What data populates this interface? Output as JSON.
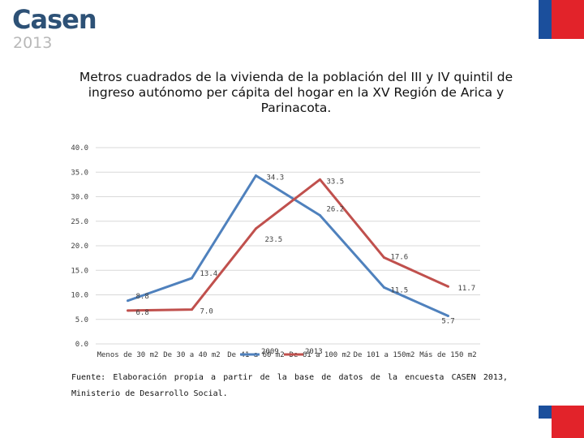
{
  "logo": {
    "name": "Casen",
    "year": "2013"
  },
  "chart_data": {
    "type": "line",
    "title": "Metros cuadrados de la vivienda de la población del III y IV quintil de ingreso autónomo per cápita del hogar en la XV Región de Arica y Parinacota.",
    "categories": [
      "Menos de 30 m2",
      "De 30 a 40 m2",
      "De 41 a 60 m2",
      "De 61 a 100 m2",
      "De 101 a 150m2",
      "Más de 150 m2"
    ],
    "yticks": [
      "0.0",
      "5.0",
      "10.0",
      "15.0",
      "20.0",
      "25.0",
      "30.0",
      "35.0",
      "40.0"
    ],
    "ylim": [
      0,
      40
    ],
    "xlabel": "",
    "ylabel": "",
    "grid": true,
    "legend_position": "bottom",
    "series": [
      {
        "name": "2009",
        "color": "#4f81bd",
        "values": [
          8.8,
          13.4,
          34.3,
          26.2,
          11.5,
          5.7
        ],
        "labels": [
          "8.8",
          "13.4",
          "34.3",
          "26.2",
          "11.5",
          "5.7"
        ]
      },
      {
        "name": "2013",
        "color": "#c0504d",
        "values": [
          6.8,
          7.0,
          23.5,
          33.5,
          17.6,
          11.7
        ],
        "labels": [
          "6.8",
          "7.0",
          "23.5",
          "33.5",
          "17.6",
          "11.7"
        ]
      }
    ]
  },
  "source": "Fuente: Elaboración propia a partir de la base de datos de la encuesta CASEN 2013, Ministerio de Desarrollo Social."
}
